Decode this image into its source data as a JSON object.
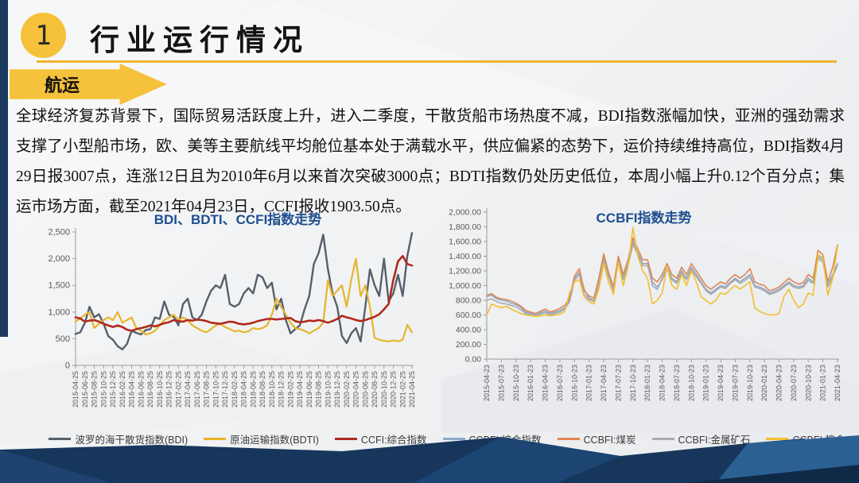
{
  "colors": {
    "accent_yellow": "#F6C13B",
    "underline_yellow": "#F0B42C",
    "navy": "#16365C",
    "title_blue": "#1F4E8F",
    "axis_gray": "#595959"
  },
  "header": {
    "number": "1",
    "title": "行业运行情况",
    "tag": "航运"
  },
  "paragraph": "全球经济复苏背景下，国际贸易活跃度上升，进入二季度，干散货船市场热度不减，BDI指数涨幅加快，亚洲的强劲需求支撑了小型船市场，欧、美等主要航线平均舱位基本处于满载水平，供应偏紧的态势下，运价持续维持高位，BDI指数4月29日报3007点，连涨12日且为2010年6月以来首次突破3000点；BDTI指数仍处历史低位，本周小幅上升0.12个百分点；集运市场方面，截至2021年04月23日，CCFI报收1903.50点。",
  "chart_data": [
    {
      "type": "line",
      "title": "BDI、BDTI、CCFI指数走势",
      "ylim": [
        0,
        2500
      ],
      "grid": false,
      "legend_position": "bottom",
      "y_ticks": [
        "0",
        "500",
        "1,000",
        "1,500",
        "2,000",
        "2,500"
      ],
      "x_ticks": [
        "2015-04-25",
        "2015-06-25",
        "2015-08-25",
        "2015-10-25",
        "2015-12-25",
        "2016-02-25",
        "2016-04-25",
        "2016-06-25",
        "2016-08-25",
        "2016-10-25",
        "2016-12-25",
        "2017-02-25",
        "2017-04-25",
        "2017-06-25",
        "2017-08-25",
        "2017-10-25",
        "2017-12-25",
        "2018-02-25",
        "2018-04-25",
        "2018-06-25",
        "2018-08-25",
        "2018-10-25",
        "2018-12-25",
        "2019-02-25",
        "2019-04-25",
        "2019-06-25",
        "2019-08-25",
        "2019-10-25",
        "2019-12-25",
        "2020-02-25",
        "2020-04-25",
        "2020-06-25",
        "2020-08-25",
        "2020-10-25",
        "2020-12-25",
        "2021-02-25",
        "2021-04-25"
      ],
      "series": [
        {
          "name": "波罗的海干散货指数(BDI)",
          "color": "#575F6B",
          "values": [
            590,
            620,
            800,
            1100,
            900,
            960,
            780,
            550,
            480,
            360,
            300,
            400,
            650,
            610,
            580,
            660,
            680,
            900,
            870,
            1200,
            950,
            910,
            750,
            1150,
            1250,
            900,
            850,
            950,
            1200,
            1400,
            1500,
            1450,
            1700,
            1150,
            1100,
            1150,
            1350,
            1450,
            1350,
            1700,
            1650,
            1450,
            1550,
            1050,
            1250,
            850,
            600,
            680,
            750,
            1050,
            1300,
            1900,
            2100,
            2450,
            1800,
            1350,
            1100,
            550,
            420,
            600,
            700,
            450,
            1100,
            1800,
            1500,
            1300,
            2000,
            1200,
            1350,
            1700,
            1300,
            2050,
            2480
          ]
        },
        {
          "name": "原油运输指数(BDTI)",
          "color": "#E7B52B",
          "values": [
            820,
            880,
            950,
            1000,
            700,
            780,
            850,
            900,
            850,
            1000,
            800,
            850,
            900,
            700,
            650,
            580,
            600,
            650,
            750,
            850,
            900,
            950,
            850,
            900,
            850,
            750,
            700,
            650,
            620,
            680,
            750,
            780,
            720,
            680,
            640,
            650,
            620,
            640,
            700,
            680,
            700,
            750,
            950,
            1250,
            1100,
            950,
            800,
            700,
            680,
            650,
            600,
            650,
            700,
            800,
            1600,
            1300,
            1400,
            1500,
            1100,
            1600,
            2000,
            1300,
            1500,
            1100,
            520,
            480,
            460,
            450,
            470,
            450,
            480,
            760,
            620
          ]
        },
        {
          "name": "CCFI:综合指数",
          "color": "#B02A1E",
          "values": [
            900,
            880,
            820,
            840,
            850,
            820,
            780,
            750,
            720,
            750,
            720,
            670,
            650,
            680,
            700,
            720,
            750,
            730,
            760,
            790,
            810,
            850,
            830,
            820,
            850,
            840,
            860,
            850,
            830,
            800,
            790,
            780,
            800,
            820,
            810,
            780,
            770,
            780,
            800,
            830,
            850,
            870,
            870,
            860,
            870,
            880,
            890,
            830,
            810,
            820,
            840,
            830,
            850,
            830,
            800,
            830,
            870,
            930,
            900,
            880,
            850,
            830,
            850,
            880,
            910,
            960,
            1050,
            1150,
            1600,
            1950,
            2050,
            1900,
            1870
          ]
        }
      ]
    },
    {
      "type": "line",
      "title": "CCBFI指数走势",
      "ylim": [
        0,
        2000
      ],
      "grid": false,
      "legend_position": "bottom",
      "y_ticks": [
        "0.00",
        "200.00",
        "400.00",
        "600.00",
        "800.00",
        "1,000.00",
        "1,200.00",
        "1,400.00",
        "1,600.00",
        "1,800.00",
        "2,000.00"
      ],
      "x_ticks": [
        "2015-04-23",
        "2015-07-23",
        "2015-10-23",
        "2016-01-23",
        "2016-04-23",
        "2016-07-23",
        "2016-10-23",
        "2017-01-23",
        "2017-04-23",
        "2017-07-23",
        "2017-10-23",
        "2018-01-23",
        "2018-04-23",
        "2018-07-23",
        "2018-10-23",
        "2019-01-23",
        "2019-04-23",
        "2019-07-23",
        "2019-10-23",
        "2020-01-23",
        "2020-04-23",
        "2020-07-23",
        "2020-10-23",
        "2021-01-23",
        "2021-04-23"
      ],
      "series": [
        {
          "name": "CCBFI:综合指数",
          "color": "#8DA9C9",
          "values": [
            850,
            870,
            820,
            800,
            790,
            760,
            740,
            700,
            640,
            620,
            600,
            630,
            650,
            620,
            640,
            660,
            700,
            800,
            1100,
            1180,
            950,
            830,
            800,
            1050,
            1380,
            1150,
            950,
            1350,
            1100,
            1300,
            1600,
            1450,
            1300,
            1300,
            1000,
            950,
            1100,
            1250,
            1100,
            1050,
            1200,
            1100,
            1250,
            1150,
            1050,
            950,
            900,
            950,
            1000,
            980,
            1050,
            1100,
            1050,
            1100,
            1150,
            1000,
            980,
            950,
            900,
            920,
            950,
            1000,
            1050,
            1000,
            980,
            1000,
            1100,
            1050,
            1400,
            1350,
            1000,
            1150,
            1300
          ]
        },
        {
          "name": "CCBFI:煤炭",
          "color": "#E08552",
          "values": [
            870,
            890,
            840,
            820,
            810,
            790,
            760,
            720,
            660,
            640,
            620,
            650,
            680,
            640,
            660,
            690,
            730,
            830,
            1130,
            1230,
            930,
            860,
            830,
            1100,
            1430,
            1180,
            980,
            1400,
            1150,
            1350,
            1650,
            1500,
            1350,
            1350,
            1100,
            1050,
            1150,
            1300,
            1150,
            1100,
            1250,
            1150,
            1300,
            1200,
            1100,
            1000,
            950,
            1000,
            1050,
            1020,
            1100,
            1150,
            1100,
            1150,
            1230,
            1050,
            1020,
            1000,
            930,
            950,
            980,
            1040,
            1100,
            1050,
            1020,
            1040,
            1150,
            1100,
            1480,
            1420,
            1050,
            1250,
            1550
          ]
        },
        {
          "name": "CCBFI:金属矿石",
          "color": "#ABABAB",
          "values": [
            800,
            820,
            780,
            760,
            750,
            730,
            710,
            670,
            620,
            600,
            580,
            610,
            630,
            600,
            620,
            640,
            680,
            780,
            1070,
            1150,
            880,
            810,
            780,
            1020,
            1350,
            1120,
            930,
            1320,
            1080,
            1270,
            1560,
            1420,
            1270,
            1270,
            1050,
            980,
            1080,
            1220,
            1080,
            1030,
            1170,
            1080,
            1220,
            1120,
            1030,
            930,
            880,
            930,
            980,
            960,
            1030,
            1080,
            1030,
            1070,
            1120,
            980,
            960,
            930,
            880,
            900,
            930,
            980,
            1030,
            980,
            960,
            980,
            1070,
            1030,
            1370,
            1320,
            980,
            1120,
            1280
          ]
        },
        {
          "name": "CCBFI:粮食",
          "color": "#F2C02E",
          "values": [
            600,
            750,
            720,
            700,
            720,
            680,
            650,
            620,
            600,
            590,
            580,
            590,
            600,
            590,
            600,
            610,
            650,
            900,
            1050,
            1080,
            850,
            780,
            750,
            950,
            1300,
            1050,
            880,
            1320,
            1000,
            1250,
            1790,
            1400,
            1200,
            1100,
            750,
            800,
            900,
            1250,
            1000,
            950,
            1150,
            1000,
            1200,
            1050,
            850,
            800,
            750,
            800,
            900,
            880,
            950,
            1000,
            950,
            1000,
            1050,
            700,
            650,
            620,
            600,
            600,
            620,
            850,
            950,
            800,
            700,
            750,
            900,
            870,
            1420,
            1380,
            870,
            1100,
            1530
          ]
        }
      ]
    }
  ]
}
